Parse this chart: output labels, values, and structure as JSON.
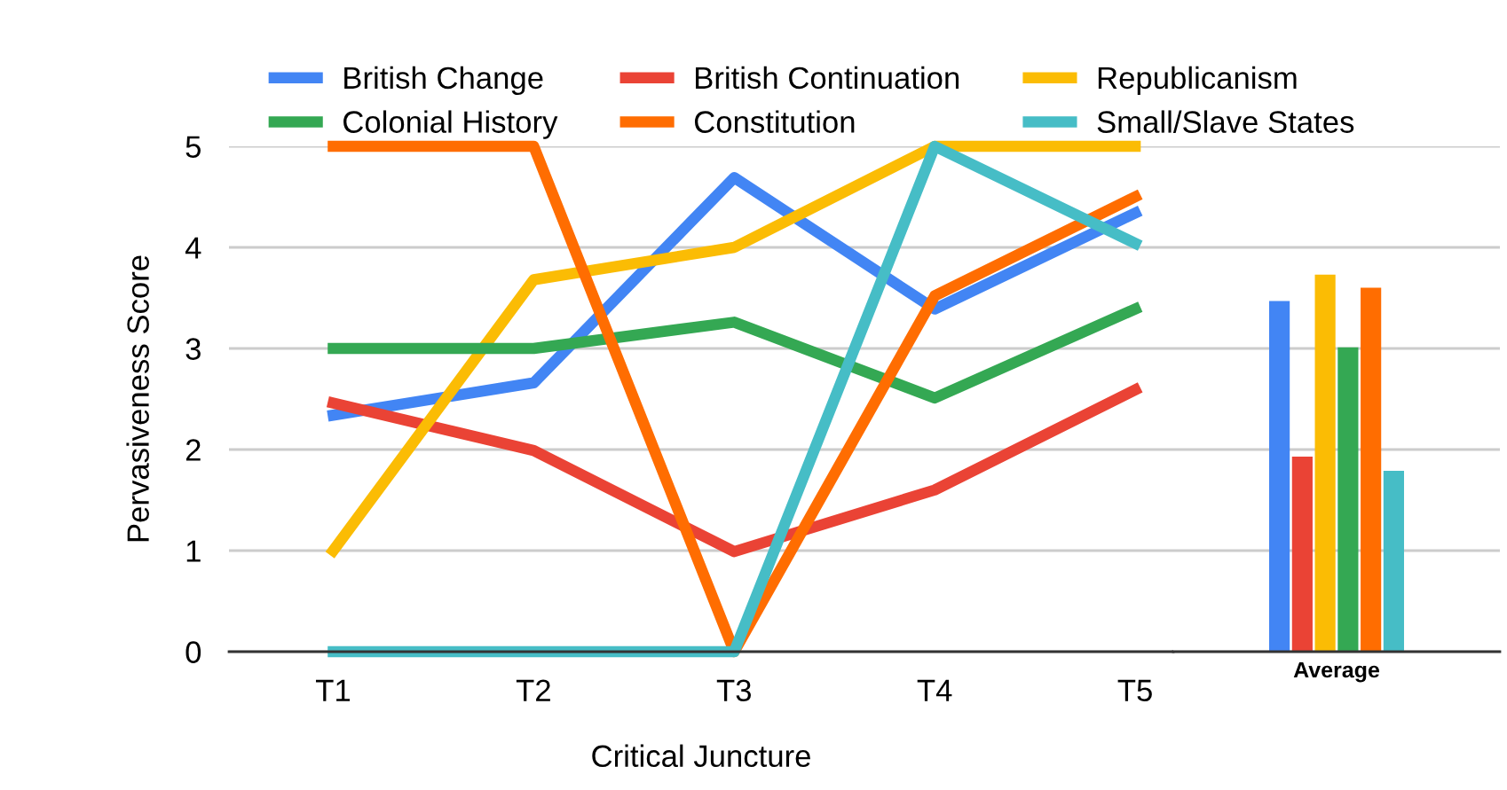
{
  "chart_data": [
    {
      "type": "line",
      "xlabel": "Critical Juncture",
      "ylabel": "Pervasiveness Score",
      "categories": [
        "T1",
        "T2",
        "T3",
        "T4",
        "T5"
      ],
      "ylim": [
        0,
        5
      ],
      "yticks": [
        0,
        1,
        2,
        3,
        4,
        5
      ],
      "grid": "y",
      "legend": "top",
      "line_style": "solid",
      "series": [
        {
          "name": "British Change",
          "color": "#4285f4",
          "values": [
            2.34,
            2.66,
            4.69,
            3.39,
            4.34
          ]
        },
        {
          "name": "British Continuation",
          "color": "#ea4335",
          "values": [
            2.46,
            1.99,
            0.99,
            1.6,
            2.59
          ]
        },
        {
          "name": "Republicanism",
          "color": "#fbbc04",
          "values": [
            1,
            3.68,
            4,
            5,
            5
          ]
        },
        {
          "name": "Colonial History",
          "color": "#34a853",
          "values": [
            3,
            3,
            3.26,
            2.51,
            3.39
          ]
        },
        {
          "name": "Constitution",
          "color": "#ff6d01",
          "values": [
            5,
            5,
            0,
            3.52,
            4.5
          ]
        },
        {
          "name": "Small/Slave States",
          "color": "#46bdc6",
          "values": [
            0,
            0,
            0,
            5,
            4.04
          ]
        }
      ]
    },
    {
      "type": "bar",
      "categories": [
        "Average"
      ],
      "ylim": [
        0,
        5
      ],
      "yticks": [
        0,
        1,
        2,
        3,
        4,
        5
      ],
      "grid": "y",
      "tick_labels": "x",
      "series": [
        {
          "color": "#4285f4",
          "values": [
            3.47
          ]
        },
        {
          "color": "#ea4335",
          "values": [
            1.93
          ]
        },
        {
          "color": "#fbbc04",
          "values": [
            3.73
          ]
        },
        {
          "color": "#34a853",
          "values": [
            3.01
          ]
        },
        {
          "color": "#ff6d01",
          "values": [
            3.6
          ]
        },
        {
          "color": "#46bdc6",
          "values": [
            1.79
          ]
        }
      ]
    }
  ]
}
